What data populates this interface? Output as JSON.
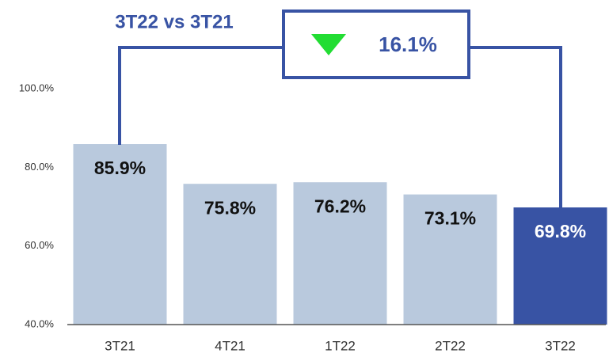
{
  "chart_data": {
    "type": "bar",
    "categories": [
      "3T21",
      "4T21",
      "1T22",
      "2T22",
      "3T22"
    ],
    "values": [
      85.9,
      75.8,
      76.2,
      73.1,
      69.8
    ],
    "value_labels": [
      "85.9%",
      "75.8%",
      "76.2%",
      "73.1%",
      "69.8%"
    ],
    "colors": [
      "#b9c9dd",
      "#b9c9dd",
      "#b9c9dd",
      "#b9c9dd",
      "#3853a4"
    ],
    "ylim": [
      40,
      100
    ],
    "yticks": [
      {
        "value": 40,
        "label": "40.0%"
      },
      {
        "value": 60,
        "label": "60.0%"
      },
      {
        "value": 80,
        "label": "80.0%"
      },
      {
        "value": 100,
        "label": "100.0%"
      }
    ],
    "annotations": {
      "comparison": "3T22 vs 3T21",
      "change": "16.1%"
    }
  }
}
